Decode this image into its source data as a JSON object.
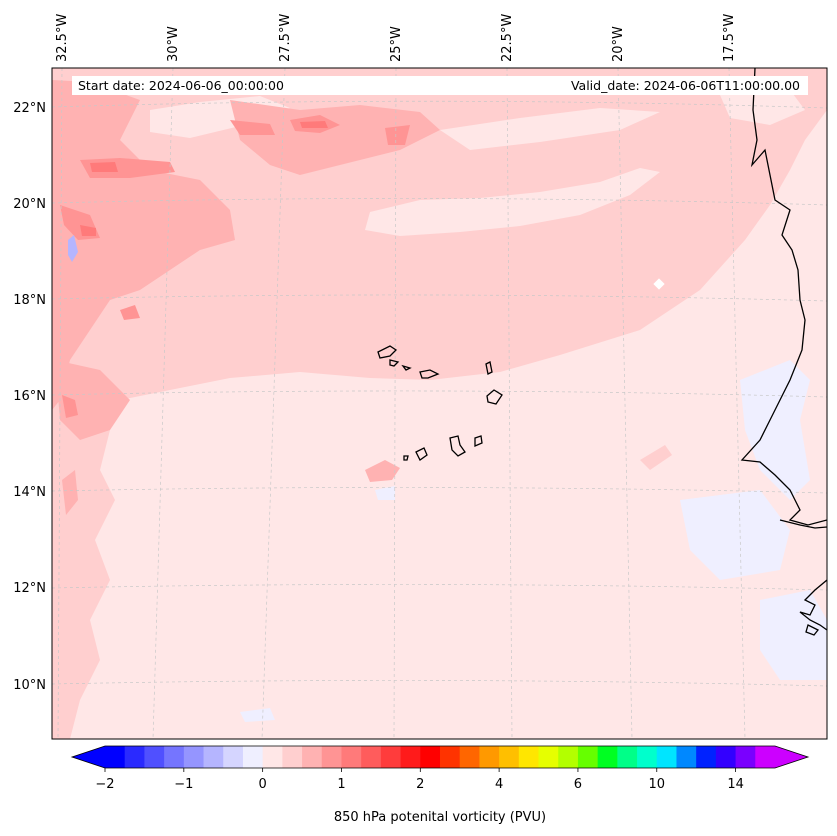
{
  "map": {
    "start_date_text": "Start date: 2024-06-06_00:00:00",
    "valid_date_text": "Valid_date: 2024-06-06T11:00:00.00",
    "lon_labels": [
      "32.5°W",
      "30°W",
      "27.5°W",
      "25°W",
      "22.5°W",
      "20°W",
      "17.5°W"
    ],
    "lat_labels": [
      "22°N",
      "20°N",
      "18°N",
      "16°N",
      "14°N",
      "12°N",
      "10°N"
    ],
    "islands": [
      "Santo Antão",
      "São Vicente",
      "Santa Luzia",
      "São Nicolau",
      "Sal",
      "Boa Vista",
      "Maio",
      "Santiago",
      "Fogo",
      "Brava"
    ]
  },
  "colorbar": {
    "label": "850 hPa potenital vorticity (PVU)",
    "tick_labels": [
      "−2",
      "−1",
      "0",
      "1",
      "2",
      "4",
      "6",
      "10",
      "14"
    ],
    "levels": [
      -2,
      -1.75,
      -1.5,
      -1.25,
      -1,
      -0.75,
      -0.5,
      -0.25,
      0,
      0.25,
      0.5,
      0.75,
      1,
      1.25,
      1.5,
      1.75,
      2,
      2.5,
      3,
      3.5,
      4,
      4.5,
      5,
      5.5,
      6,
      7,
      8,
      9,
      10,
      11,
      12,
      13,
      14,
      16
    ],
    "colors": [
      "#0000ff",
      "#2a2aff",
      "#5050ff",
      "#7575ff",
      "#9595ff",
      "#b5b5ff",
      "#d5d5ff",
      "#efefff",
      "#ffe7e7",
      "#ffcfcf",
      "#ffb2b2",
      "#ff9494",
      "#ff7a7a",
      "#ff5c5c",
      "#ff3c3c",
      "#ff1b1b",
      "#ff0000",
      "#ff3300",
      "#ff6600",
      "#ff9900",
      "#ffbf00",
      "#ffe600",
      "#e6ff00",
      "#b3ff00",
      "#66ff00",
      "#00ff22",
      "#00ff88",
      "#00ffcc",
      "#00e5ff",
      "#0088ff",
      "#0022ff",
      "#3300ff",
      "#7a00ff",
      "#cc00ff"
    ],
    "extend_low_color": "#0000ff",
    "extend_high_color": "#cc00ff"
  }
}
